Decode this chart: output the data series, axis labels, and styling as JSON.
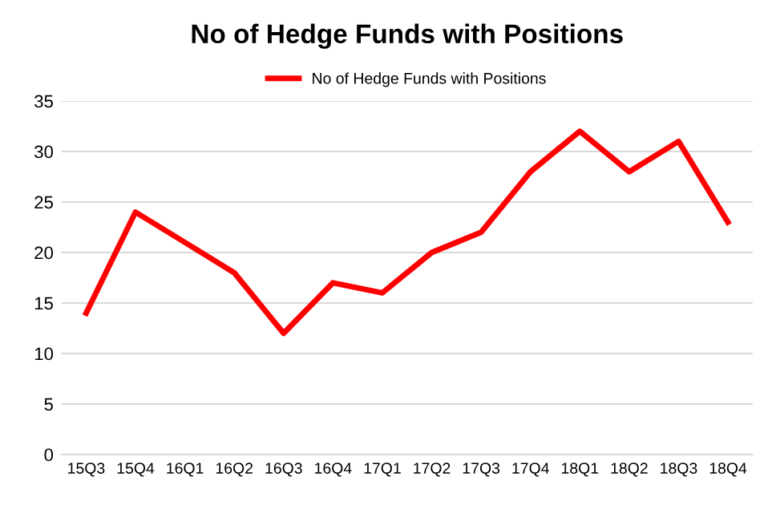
{
  "chart_data": {
    "type": "line",
    "title": "No of Hedge Funds with Positions",
    "categories": [
      "15Q3",
      "15Q4",
      "16Q1",
      "16Q2",
      "16Q3",
      "16Q4",
      "17Q1",
      "17Q2",
      "17Q3",
      "17Q4",
      "18Q1",
      "18Q2",
      "18Q3",
      "18Q4"
    ],
    "series": [
      {
        "name": "No of Hedge Funds with Positions",
        "color": "#ff0000",
        "values": [
          14,
          24,
          21,
          18,
          12,
          17,
          16,
          20,
          22,
          28,
          32,
          28,
          31,
          23
        ]
      }
    ],
    "ylim": [
      0,
      35
    ],
    "yticks": [
      0,
      5,
      10,
      15,
      20,
      25,
      30,
      35
    ],
    "grid": "y",
    "legend": "top",
    "marker": "none",
    "line_style": "solid"
  }
}
